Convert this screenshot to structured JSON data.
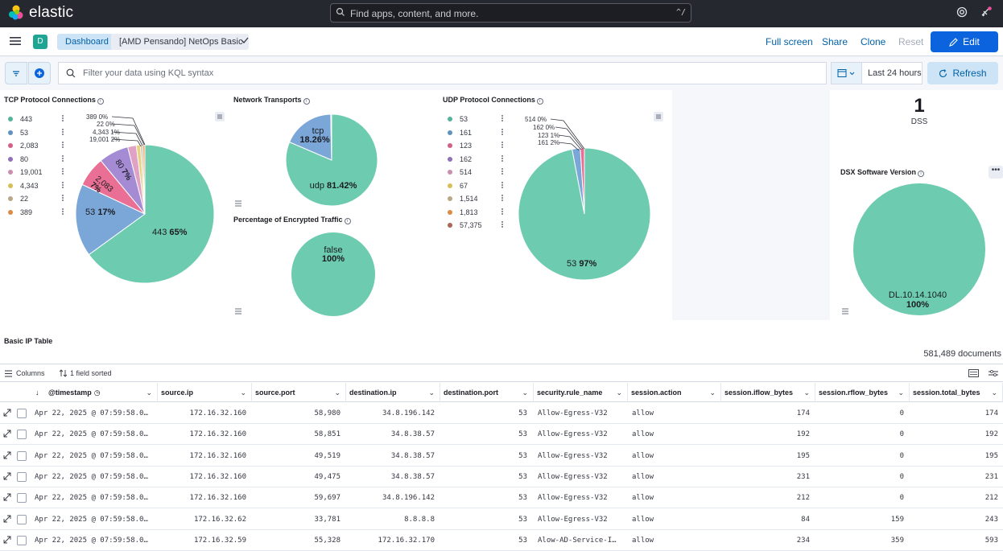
{
  "app": {
    "logo_text": "elastic",
    "search_placeholder": "Find apps, content, and more.",
    "search_shortcut": "^/"
  },
  "nav": {
    "space_initial": "D",
    "breadcrumbs": [
      "Dashboard",
      "[AMD Pensando] NetOps Basic"
    ],
    "links": {
      "full_screen": "Full screen",
      "share": "Share",
      "clone": "Clone",
      "reset": "Reset",
      "edit": "Edit"
    }
  },
  "query": {
    "placeholder": "Filter your data using KQL syntax",
    "date_range": "Last 24 hours",
    "refresh": "Refresh"
  },
  "panels": {
    "tcp": {
      "title": "TCP Protocol Connections",
      "legend": [
        {
          "label": "443",
          "color": "#54b399"
        },
        {
          "label": "53",
          "color": "#6092c0"
        },
        {
          "label": "2,083",
          "color": "#d36086"
        },
        {
          "label": "80",
          "color": "#9170b8"
        },
        {
          "label": "19,001",
          "color": "#ca8eae"
        },
        {
          "label": "4,343",
          "color": "#d6bf57"
        },
        {
          "label": "22",
          "color": "#b9a888"
        },
        {
          "label": "389",
          "color": "#da8b45"
        }
      ],
      "callouts": [
        {
          "label": "389",
          "pct": "0%"
        },
        {
          "label": "22",
          "pct": "0%"
        },
        {
          "label": "4,343",
          "pct": "1%"
        },
        {
          "label": "19,001",
          "pct": "2%"
        }
      ],
      "slice_labels": [
        {
          "label": "443",
          "pct": "65%"
        },
        {
          "label": "53",
          "pct": "17%"
        },
        {
          "label": "2,083",
          "pct": "7%"
        },
        {
          "label": "80",
          "pct": "7%"
        }
      ]
    },
    "transports": {
      "title": "Network Transports",
      "slices": [
        {
          "label": "udp",
          "pct": "81.42%"
        },
        {
          "label": "tcp",
          "pct": "18.26%"
        }
      ]
    },
    "encrypted": {
      "title": "Percentage of Encrypted Traffic",
      "label": "false",
      "pct": "100%"
    },
    "udp": {
      "title": "UDP Protocol Connections",
      "legend": [
        {
          "label": "53",
          "color": "#54b399"
        },
        {
          "label": "161",
          "color": "#6092c0"
        },
        {
          "label": "123",
          "color": "#d36086"
        },
        {
          "label": "162",
          "color": "#9170b8"
        },
        {
          "label": "514",
          "color": "#ca8eae"
        },
        {
          "label": "67",
          "color": "#d6bf57"
        },
        {
          "label": "1,514",
          "color": "#b9a888"
        },
        {
          "label": "1,813",
          "color": "#da8b45"
        },
        {
          "label": "57,375",
          "color": "#aa6556"
        }
      ],
      "callouts": [
        {
          "label": "514",
          "pct": "0%"
        },
        {
          "label": "162",
          "pct": "0%"
        },
        {
          "label": "123",
          "pct": "1%"
        },
        {
          "label": "161",
          "pct": "2%"
        }
      ],
      "main_label": "53",
      "main_pct": "97%"
    },
    "dss": {
      "value": "1",
      "label": "DSS"
    },
    "dsx": {
      "title": "DSX Software Version",
      "label": "DL.10.14.1040",
      "pct": "100%"
    }
  },
  "table": {
    "title": "Basic IP Table",
    "doc_count": "581,489 documents",
    "toolbar": {
      "columns": "Columns",
      "sorted": "1 field sorted"
    },
    "headers": [
      "@timestamp",
      "source.ip",
      "source.port",
      "destination.ip",
      "destination.port",
      "security.rule_name",
      "session.action",
      "session.iflow_bytes",
      "session.rflow_bytes",
      "session.total_bytes"
    ],
    "rows": [
      [
        "Apr 22, 2025 @ 07:59:58.0…",
        "172.16.32.160",
        "58,980",
        "34.8.196.142",
        "53",
        "Allow-Egress-V32",
        "allow",
        "174",
        "0",
        "174"
      ],
      [
        "Apr 22, 2025 @ 07:59:58.0…",
        "172.16.32.160",
        "58,851",
        "34.8.38.57",
        "53",
        "Allow-Egress-V32",
        "allow",
        "192",
        "0",
        "192"
      ],
      [
        "Apr 22, 2025 @ 07:59:58.0…",
        "172.16.32.160",
        "49,519",
        "34.8.38.57",
        "53",
        "Allow-Egress-V32",
        "allow",
        "195",
        "0",
        "195"
      ],
      [
        "Apr 22, 2025 @ 07:59:58.0…",
        "172.16.32.160",
        "49,475",
        "34.8.38.57",
        "53",
        "Allow-Egress-V32",
        "allow",
        "231",
        "0",
        "231"
      ],
      [
        "Apr 22, 2025 @ 07:59:58.0…",
        "172.16.32.160",
        "59,697",
        "34.8.196.142",
        "53",
        "Allow-Egress-V32",
        "allow",
        "212",
        "0",
        "212"
      ],
      [
        "Apr 22, 2025 @ 07:59:58.0…",
        "172.16.32.62",
        "33,781",
        "8.8.8.8",
        "53",
        "Allow-Egress-V32",
        "allow",
        "84",
        "159",
        "243"
      ],
      [
        "Apr 22, 2025 @ 07:59:58.0…",
        "172.16.32.59",
        "55,328",
        "172.16.32.170",
        "53",
        "Alow-AD-Service-I…",
        "allow",
        "234",
        "359",
        "593"
      ]
    ]
  }
}
